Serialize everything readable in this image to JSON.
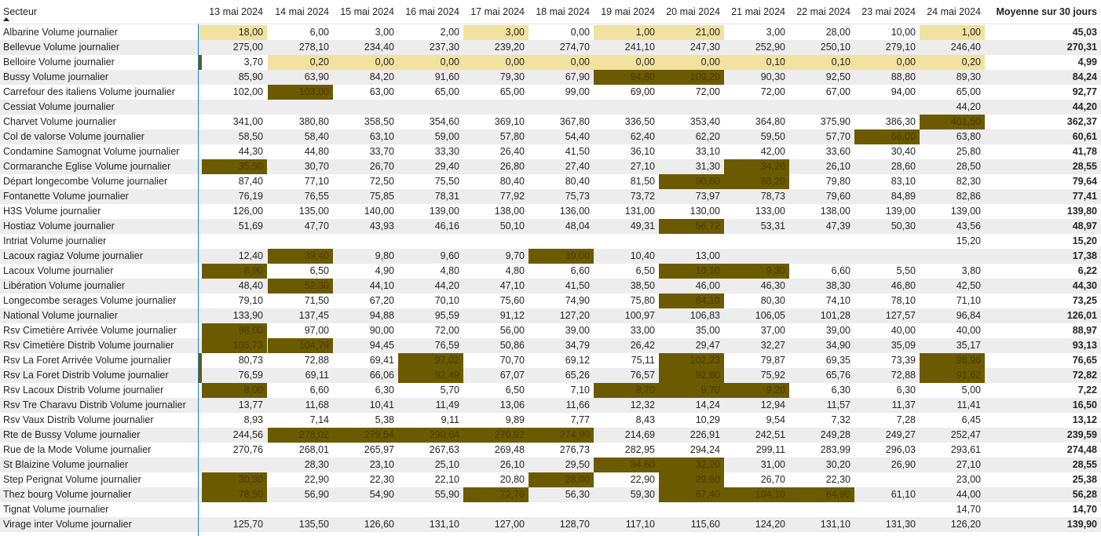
{
  "header": {
    "sector_label": "Secteur",
    "dates": [
      "13 mai 2024",
      "14 mai 2024",
      "15 mai 2024",
      "16 mai 2024",
      "17 mai 2024",
      "18 mai 2024",
      "19 mai 2024",
      "20 mai 2024",
      "21 mai 2024",
      "22 mai 2024",
      "23 mai 2024",
      "24 mai 2024"
    ],
    "average_label": "Moyenne sur 30 jours"
  },
  "colors": {
    "highlight_light": "#f2e2a0",
    "highlight_dark": "#6b5a00",
    "alt_row": "#ededed",
    "selection_line": "#1a7fd4"
  },
  "rows": [
    {
      "name": "Albarine Volume journalier",
      "values": [
        "18,00",
        "6,00",
        "3,00",
        "2,00",
        "3,00",
        "0,00",
        "1,00",
        "21,00",
        "3,00",
        "28,00",
        "10,00",
        "1,00"
      ],
      "avg": "45,03",
      "flags": "L...L.LL...L",
      "marker": "L"
    },
    {
      "name": "Bellevue Volume journalier",
      "values": [
        "275,00",
        "278,10",
        "234,40",
        "237,30",
        "239,20",
        "274,70",
        "241,10",
        "247,30",
        "252,90",
        "250,10",
        "279,10",
        "246,40"
      ],
      "avg": "270,31",
      "flags": "............",
      "marker": ""
    },
    {
      "name": "Belloire Volume journalier",
      "values": [
        "3,70",
        "0,20",
        "0,00",
        "0,00",
        "0,00",
        "0,00",
        "0,00",
        "0,00",
        "0,10",
        "0,10",
        "0,00",
        "0,20"
      ],
      "avg": "4,99",
      "flags": ".LLLLLLLLLLL",
      "marker": "D"
    },
    {
      "name": "Bussy Volume journalier",
      "values": [
        "85,90",
        "63,90",
        "84,20",
        "91,60",
        "79,30",
        "67,90",
        "94,80",
        "109,20",
        "90,30",
        "92,50",
        "88,80",
        "89,30"
      ],
      "avg": "84,24",
      "flags": "......DD....",
      "marker": ""
    },
    {
      "name": "Carrefour des italiens Volume journalier",
      "values": [
        "102,00",
        "103,00",
        "63,00",
        "65,00",
        "65,00",
        "99,00",
        "69,00",
        "72,00",
        "72,00",
        "67,00",
        "94,00",
        "65,00"
      ],
      "avg": "92,77",
      "flags": ".D..........",
      "marker": ""
    },
    {
      "name": "Cessiat Volume journalier",
      "values": [
        "",
        "",
        "",
        "",
        "",
        "",
        "",
        "",
        "",
        "",
        "",
        "44,20"
      ],
      "avg": "44,20",
      "flags": "............",
      "marker": ""
    },
    {
      "name": "Charvet Volume journalier",
      "values": [
        "341,00",
        "380,80",
        "358,50",
        "354,60",
        "369,10",
        "367,80",
        "336,50",
        "353,40",
        "364,80",
        "375,90",
        "386,30",
        "401,50"
      ],
      "avg": "362,37",
      "flags": "...........D",
      "marker": ""
    },
    {
      "name": "Col de valorse Volume journalier",
      "values": [
        "58,50",
        "58,40",
        "63,10",
        "59,00",
        "57,80",
        "54,40",
        "62,40",
        "62,20",
        "59,50",
        "57,70",
        "68,00",
        "63,80"
      ],
      "avg": "60,61",
      "flags": "..........D.",
      "marker": ""
    },
    {
      "name": "Condamine Samognat Volume journalier",
      "values": [
        "44,30",
        "44,80",
        "33,70",
        "33,30",
        "26,40",
        "41,50",
        "36,10",
        "33,10",
        "42,00",
        "33,60",
        "30,40",
        "25,80"
      ],
      "avg": "41,78",
      "flags": "............",
      "marker": ""
    },
    {
      "name": "Cormaranche Eglise Volume journalier",
      "values": [
        "35,50",
        "30,70",
        "26,70",
        "29,40",
        "26,80",
        "27,40",
        "27,10",
        "31,30",
        "34,20",
        "26,10",
        "28,60",
        "28,50"
      ],
      "avg": "28,55",
      "flags": "D.......D...",
      "marker": ""
    },
    {
      "name": "Départ longecombe Volume journalier",
      "values": [
        "87,40",
        "77,10",
        "72,50",
        "75,50",
        "80,40",
        "80,40",
        "81,50",
        "90,80",
        "88,20",
        "79,80",
        "83,10",
        "82,30"
      ],
      "avg": "79,64",
      "flags": ".......DD...",
      "marker": ""
    },
    {
      "name": "Fontanette Volume journalier",
      "values": [
        "76,19",
        "76,55",
        "75,85",
        "78,31",
        "77,92",
        "75,73",
        "73,72",
        "73,97",
        "78,73",
        "79,60",
        "84,89",
        "82,86"
      ],
      "avg": "77,41",
      "flags": "............",
      "marker": ""
    },
    {
      "name": "H3S Volume journalier",
      "values": [
        "126,00",
        "135,00",
        "140,00",
        "139,00",
        "138,00",
        "136,00",
        "131,00",
        "130,00",
        "133,00",
        "138,00",
        "139,00",
        "139,00"
      ],
      "avg": "139,80",
      "flags": "............",
      "marker": ""
    },
    {
      "name": "Hostiaz Volume journalier",
      "values": [
        "51,69",
        "47,70",
        "43,93",
        "46,16",
        "50,10",
        "48,04",
        "49,31",
        "56,72",
        "53,31",
        "47,39",
        "50,30",
        "43,56"
      ],
      "avg": "48,97",
      "flags": ".......D....",
      "marker": ""
    },
    {
      "name": "Intriat Volume journalier",
      "values": [
        "",
        "",
        "",
        "",
        "",
        "",
        "",
        "",
        "",
        "",
        "",
        "15,20"
      ],
      "avg": "15,20",
      "flags": "............",
      "marker": ""
    },
    {
      "name": "Lacoux ragiaz Volume journalier",
      "values": [
        "12,40",
        "39,40",
        "9,80",
        "9,60",
        "9,70",
        "39,00",
        "10,40",
        "13,00",
        "",
        "",
        "",
        ""
      ],
      "avg": "17,38",
      "flags": ".D...D......",
      "marker": ""
    },
    {
      "name": "Lacoux Volume journalier",
      "values": [
        "8,90",
        "6,50",
        "4,90",
        "4,80",
        "4,80",
        "6,60",
        "6,50",
        "10,10",
        "9,30",
        "6,60",
        "5,50",
        "3,80"
      ],
      "avg": "6,22",
      "flags": "D......DD...",
      "marker": ""
    },
    {
      "name": "Libération Volume journalier",
      "values": [
        "48,40",
        "52,30",
        "44,10",
        "44,20",
        "47,10",
        "41,50",
        "38,50",
        "46,00",
        "46,30",
        "38,30",
        "46,80",
        "42,50"
      ],
      "avg": "44,30",
      "flags": ".D..........",
      "marker": ""
    },
    {
      "name": "Longecombe serages Volume journalier",
      "values": [
        "79,10",
        "71,50",
        "67,20",
        "70,10",
        "75,60",
        "74,90",
        "75,80",
        "84,10",
        "80,30",
        "74,10",
        "78,10",
        "71,10"
      ],
      "avg": "73,25",
      "flags": ".......D....",
      "marker": ""
    },
    {
      "name": "National Volume journalier",
      "values": [
        "133,90",
        "137,45",
        "94,88",
        "95,59",
        "91,12",
        "127,20",
        "100,97",
        "106,83",
        "106,05",
        "101,28",
        "127,57",
        "96,84"
      ],
      "avg": "126,01",
      "flags": "............",
      "marker": ""
    },
    {
      "name": "Rsv Cimetière Arrivée Volume journalier",
      "values": [
        "98,00",
        "97,00",
        "90,00",
        "72,00",
        "56,00",
        "39,00",
        "33,00",
        "35,00",
        "37,00",
        "39,00",
        "40,00",
        "40,00"
      ],
      "avg": "88,97",
      "flags": "D...........",
      "marker": ""
    },
    {
      "name": "Rsv Cimetière Distrib Volume journalier",
      "values": [
        "105,73",
        "104,79",
        "94,45",
        "76,59",
        "50,86",
        "34,79",
        "26,42",
        "29,47",
        "32,27",
        "34,90",
        "35,09",
        "35,17"
      ],
      "avg": "93,13",
      "flags": "DD..........",
      "marker": ""
    },
    {
      "name": "Rsv La Foret Arrivée Volume journalier",
      "values": [
        "80,73",
        "72,88",
        "69,41",
        "97,02",
        "70,70",
        "69,12",
        "75,11",
        "102,23",
        "79,87",
        "69,35",
        "73,39",
        "98,96"
      ],
      "avg": "76,65",
      "flags": "...D...D...D",
      "marker": "D"
    },
    {
      "name": "Rsv La Foret Distrib Volume journalier",
      "values": [
        "76,59",
        "69,11",
        "66,06",
        "92,49",
        "67,07",
        "65,26",
        "76,57",
        "92,80",
        "75,92",
        "65,76",
        "72,88",
        "91,62"
      ],
      "avg": "72,82",
      "flags": "...D...D...D",
      "marker": "D"
    },
    {
      "name": "Rsv Lacoux Distrib Volume journalier",
      "values": [
        "8,00",
        "6,60",
        "6,30",
        "5,70",
        "6,50",
        "7,10",
        "8,70",
        "9,70",
        "9,20",
        "6,30",
        "6,30",
        "5,00"
      ],
      "avg": "7,22",
      "flags": "D.....DDD...",
      "marker": ""
    },
    {
      "name": "Rsv Tre Charavu Distrib Volume journalier",
      "values": [
        "13,77",
        "11,68",
        "10,41",
        "11,49",
        "13,06",
        "11,66",
        "12,32",
        "14,24",
        "12,94",
        "11,57",
        "11,37",
        "11,41"
      ],
      "avg": "16,50",
      "flags": "............",
      "marker": ""
    },
    {
      "name": "Rsv Vaux Distrib Volume journalier",
      "values": [
        "8,93",
        "7,14",
        "5,38",
        "9,11",
        "9,89",
        "7,77",
        "8,43",
        "10,29",
        "9,54",
        "7,32",
        "7,28",
        "6,45"
      ],
      "avg": "13,12",
      "flags": "............",
      "marker": ""
    },
    {
      "name": "Rte de Bussy Volume journalier",
      "values": [
        "244,56",
        "278,02",
        "279,54",
        "290,64",
        "270,92",
        "274,90",
        "214,69",
        "226,91",
        "242,51",
        "249,28",
        "249,27",
        "252,47"
      ],
      "avg": "239,59",
      "flags": ".DDDDD......",
      "marker": ""
    },
    {
      "name": "Rue de la Mode Volume journalier",
      "values": [
        "270,76",
        "268,01",
        "265,97",
        "267,63",
        "269,48",
        "276,73",
        "282,95",
        "294,24",
        "299,11",
        "283,99",
        "296,03",
        "293,61"
      ],
      "avg": "274,48",
      "flags": "............",
      "marker": ""
    },
    {
      "name": "St Blaizine Volume journalier",
      "values": [
        "",
        "28,30",
        "23,10",
        "25,10",
        "26,10",
        "29,50",
        "34,60",
        "32,20",
        "31,00",
        "30,20",
        "26,90",
        "27,10"
      ],
      "avg": "28,55",
      "flags": "......DD....",
      "marker": ""
    },
    {
      "name": "Step Perignat Volume journalier",
      "values": [
        "30,30",
        "22,90",
        "22,30",
        "22,10",
        "20,80",
        "28,00",
        "22,90",
        "29,60",
        "26,70",
        "22,30",
        "",
        "23,00"
      ],
      "avg": "25,38",
      "flags": "D....D.D....",
      "marker": ""
    },
    {
      "name": "Thez bourg Volume journalier",
      "values": [
        "78,50",
        "56,90",
        "54,90",
        "55,90",
        "72,70",
        "56,30",
        "59,30",
        "67,40",
        "104,10",
        "64,90",
        "61,10",
        "44,00"
      ],
      "avg": "56,28",
      "flags": "D...D..DDD..",
      "marker": ""
    },
    {
      "name": "Tignat Volume journalier",
      "values": [
        "",
        "",
        "",
        "",
        "",
        "",
        "",
        "",
        "",
        "",
        "",
        "14,70"
      ],
      "avg": "14,70",
      "flags": "............",
      "marker": ""
    },
    {
      "name": "Virage inter Volume journalier",
      "values": [
        "125,70",
        "135,50",
        "126,60",
        "131,10",
        "127,00",
        "128,70",
        "117,10",
        "115,60",
        "124,20",
        "131,10",
        "131,30",
        "126,20"
      ],
      "avg": "139,90",
      "flags": "............",
      "marker": ""
    }
  ]
}
